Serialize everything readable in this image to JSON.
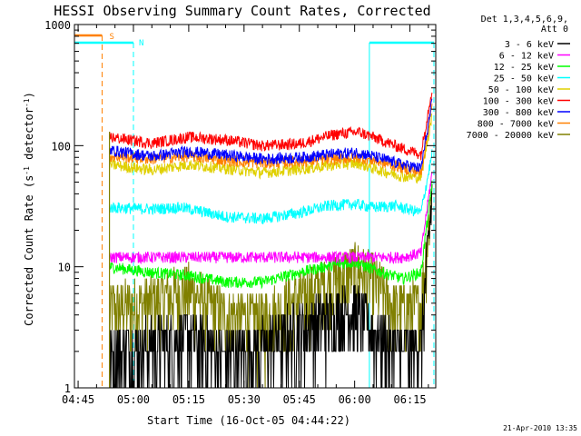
{
  "chart_data": {
    "type": "line",
    "title": "HESSI Observing Summary Count Rates, Corrected",
    "xlabel": "Start Time (16-Oct-05 04:44:22)",
    "ylabel": "Corrected Count Rate (s⁻¹ detector⁻¹)",
    "ylabel_parts": [
      "Corrected Count Rate (s",
      "-1",
      " detector",
      "-1",
      ")"
    ],
    "yscale": "log",
    "ylim": [
      1,
      1000
    ],
    "xlim_minutes": [
      -1,
      97
    ],
    "x_ticks": [
      {
        "t": 0,
        "label": "04:45"
      },
      {
        "t": 15,
        "label": "05:00"
      },
      {
        "t": 30,
        "label": "05:15"
      },
      {
        "t": 45,
        "label": "05:30"
      },
      {
        "t": 60,
        "label": "05:45"
      },
      {
        "t": 75,
        "label": "06:00"
      },
      {
        "t": 90,
        "label": "06:15"
      }
    ],
    "y_ticks": [
      {
        "v": 1,
        "label": "1"
      },
      {
        "v": 10,
        "label": "10"
      },
      {
        "v": 100,
        "label": "100"
      },
      {
        "v": 1000,
        "label": "1000"
      }
    ],
    "legend_header": [
      "Det 1,3,4,5,6,9,",
      "Att 0"
    ],
    "legend_position": "right",
    "date_stamp": "21-Apr-2010 13:35",
    "markers": {
      "saa_label": "S",
      "night_label": "N",
      "saa_end_t": 6.5,
      "night_intervals": [
        [
          -1,
          15
        ],
        [
          79,
          96.5
        ]
      ],
      "data_start_t": 8.5,
      "data_end_t": 95.5,
      "saa_color": "#ff8000",
      "night_color": "#00ffff"
    },
    "series": [
      {
        "name": "3 - 6 keV",
        "color": "#000000",
        "values": [
          [
            8.5,
            2.0
          ],
          [
            20,
            2.3
          ],
          [
            30,
            2.7
          ],
          [
            40,
            1.8
          ],
          [
            50,
            2.2
          ],
          [
            60,
            3.2
          ],
          [
            70,
            4.0
          ],
          [
            75,
            4.6
          ],
          [
            80,
            3.0
          ],
          [
            88,
            2.0
          ],
          [
            93,
            2.3
          ],
          [
            96,
            40
          ]
        ]
      },
      {
        "name": "6 - 12 keV",
        "color": "#ff00ff",
        "values": [
          [
            8.5,
            12
          ],
          [
            20,
            12
          ],
          [
            30,
            12
          ],
          [
            40,
            12
          ],
          [
            50,
            12
          ],
          [
            60,
            12
          ],
          [
            70,
            12
          ],
          [
            80,
            12
          ],
          [
            88,
            12
          ],
          [
            93,
            13
          ],
          [
            96,
            60
          ]
        ]
      },
      {
        "name": "12 - 25 keV",
        "color": "#00ff00",
        "values": [
          [
            8.5,
            10
          ],
          [
            20,
            9
          ],
          [
            30,
            8.5
          ],
          [
            40,
            7.5
          ],
          [
            50,
            7.5
          ],
          [
            60,
            9
          ],
          [
            70,
            10.5
          ],
          [
            75,
            11
          ],
          [
            80,
            9.5
          ],
          [
            88,
            8
          ],
          [
            93,
            9
          ],
          [
            96,
            50
          ]
        ]
      },
      {
        "name": "25 - 50 keV",
        "color": "#00ffff",
        "values": [
          [
            8.5,
            31
          ],
          [
            20,
            30
          ],
          [
            28,
            31
          ],
          [
            40,
            26
          ],
          [
            50,
            25
          ],
          [
            60,
            28
          ],
          [
            68,
            32
          ],
          [
            75,
            33
          ],
          [
            80,
            31
          ],
          [
            86,
            32
          ],
          [
            93,
            28
          ],
          [
            96,
            85
          ]
        ]
      },
      {
        "name": "50 - 100 keV",
        "color": "#e0d000",
        "values": [
          [
            8.5,
            70
          ],
          [
            20,
            63
          ],
          [
            30,
            70
          ],
          [
            40,
            65
          ],
          [
            50,
            60
          ],
          [
            60,
            64
          ],
          [
            70,
            70
          ],
          [
            76,
            72
          ],
          [
            80,
            65
          ],
          [
            88,
            56
          ],
          [
            93,
            55
          ],
          [
            96,
            180
          ]
        ]
      },
      {
        "name": "100 - 300 keV",
        "color": "#ff0000",
        "values": [
          [
            8.5,
            118
          ],
          [
            20,
            105
          ],
          [
            30,
            118
          ],
          [
            40,
            112
          ],
          [
            50,
            100
          ],
          [
            60,
            104
          ],
          [
            70,
            125
          ],
          [
            76,
            130
          ],
          [
            80,
            118
          ],
          [
            88,
            95
          ],
          [
            93,
            85
          ],
          [
            96,
            300
          ]
        ]
      },
      {
        "name": "300 - 800 keV",
        "color": "#0000ff",
        "values": [
          [
            8.5,
            92
          ],
          [
            20,
            82
          ],
          [
            30,
            90
          ],
          [
            40,
            84
          ],
          [
            50,
            78
          ],
          [
            60,
            80
          ],
          [
            70,
            86
          ],
          [
            76,
            88
          ],
          [
            80,
            82
          ],
          [
            88,
            70
          ],
          [
            93,
            65
          ],
          [
            96,
            230
          ]
        ]
      },
      {
        "name": "800 - 7000 keV",
        "color": "#ff8000",
        "values": [
          [
            8.5,
            82
          ],
          [
            20,
            78
          ],
          [
            30,
            82
          ],
          [
            40,
            76
          ],
          [
            50,
            72
          ],
          [
            60,
            74
          ],
          [
            70,
            78
          ],
          [
            76,
            80
          ],
          [
            80,
            76
          ],
          [
            88,
            66
          ],
          [
            93,
            60
          ],
          [
            96,
            210
          ]
        ]
      },
      {
        "name": "7000 - 20000 keV",
        "color": "#808000",
        "values": [
          [
            8.5,
            4.5
          ],
          [
            20,
            5.2
          ],
          [
            30,
            6.5
          ],
          [
            40,
            4.0
          ],
          [
            50,
            3.7
          ],
          [
            58,
            5.2
          ],
          [
            66,
            7.0
          ],
          [
            72,
            9.0
          ],
          [
            76,
            9.8
          ],
          [
            80,
            8.0
          ],
          [
            86,
            4.5
          ],
          [
            93,
            4.8
          ],
          [
            96,
            45
          ]
        ]
      }
    ]
  }
}
